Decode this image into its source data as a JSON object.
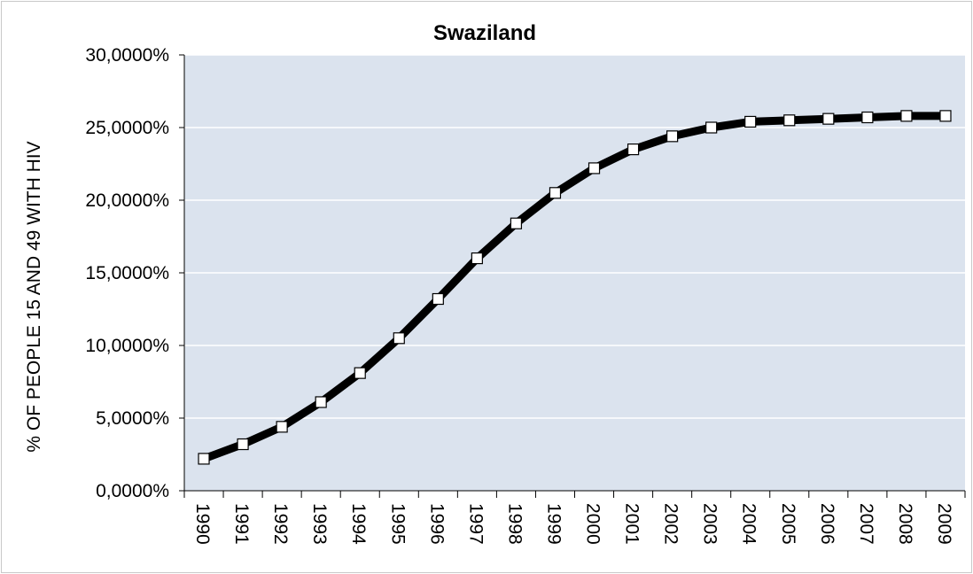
{
  "chart_data": {
    "type": "line",
    "title": "Swaziland",
    "xlabel": "",
    "ylabel": "% OF PEOPLE  15 AND 49  WITH  HIV",
    "ylim": [
      0,
      30
    ],
    "yticks": [
      "0,0000%",
      "5,0000%",
      "10,0000%",
      "15,0000%",
      "20,0000%",
      "25,0000%",
      "30,0000%"
    ],
    "categories": [
      "1990",
      "1991",
      "1992",
      "1993",
      "1994",
      "1995",
      "1996",
      "1997",
      "1998",
      "1999",
      "2000",
      "2001",
      "2002",
      "2003",
      "2004",
      "2005",
      "2006",
      "2007",
      "2008",
      "2009"
    ],
    "series": [
      {
        "values": [
          2.2,
          3.2,
          4.4,
          6.1,
          8.1,
          10.5,
          13.2,
          16.0,
          18.4,
          20.5,
          22.2,
          23.5,
          24.4,
          25.0,
          25.4,
          25.5,
          25.6,
          25.7,
          25.8,
          25.8
        ]
      }
    ],
    "grid": true,
    "legend": "none",
    "colors": {
      "plot_background": "#dbe3ee",
      "gridline": "#ffffff",
      "line": "#000000",
      "marker_fill": "#ffffff"
    }
  }
}
